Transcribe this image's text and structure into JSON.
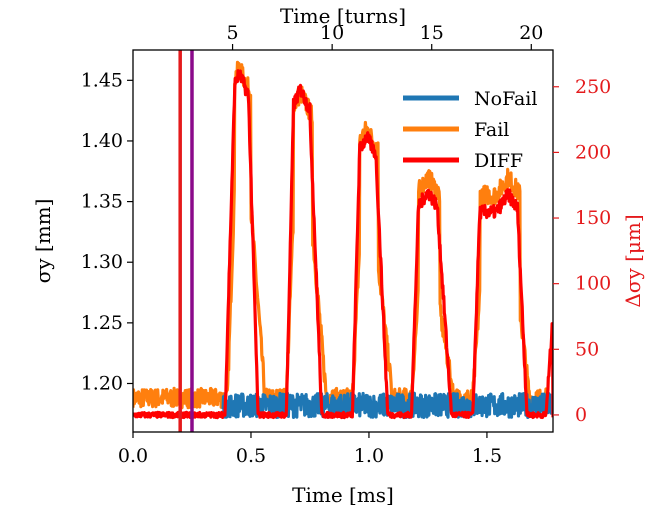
{
  "chart_data": {
    "type": "line",
    "x_axis": {
      "label": "Time [ms]",
      "range": [
        0.0,
        1.78
      ],
      "ticks": [
        0.0,
        0.5,
        1.0,
        1.5
      ],
      "tick_labels": [
        "0.0",
        "0.5",
        "1.0",
        "1.5"
      ]
    },
    "top_axis": {
      "label": "Time [turns]",
      "ticks_ms": [
        0.422,
        0.844,
        1.266,
        1.688
      ],
      "tick_labels": [
        "5",
        "10",
        "15",
        "20"
      ]
    },
    "left_axis": {
      "label": "σy [mm]",
      "range": [
        1.16,
        1.475
      ],
      "ticks": [
        1.2,
        1.25,
        1.3,
        1.35,
        1.4,
        1.45
      ],
      "tick_labels": [
        "1.20",
        "1.25",
        "1.30",
        "1.35",
        "1.40",
        "1.45"
      ]
    },
    "right_axis": {
      "label": "Δσy [μm]",
      "range": [
        -13,
        278
      ],
      "ticks": [
        0,
        50,
        100,
        150,
        200,
        250
      ],
      "tick_labels": [
        "0",
        "50",
        "100",
        "150",
        "200",
        "250"
      ],
      "color": "#e41a1c"
    },
    "vlines": [
      {
        "x": 0.2,
        "color": "#e41a1c"
      },
      {
        "x": 0.25,
        "color": "#8b0a8b"
      }
    ],
    "series": [
      {
        "name": "NoFail",
        "color": "#1f77b4",
        "axis": "left",
        "baseline": 1.182,
        "jitter": 0.01,
        "window": [
          0.38,
          1.78
        ]
      },
      {
        "name": "Fail",
        "color": "#ff7f0e",
        "axis": "left",
        "baseline": 1.188,
        "jitter": 0.008,
        "pulses": [
          {
            "start": 0.4,
            "rise_end": 0.43,
            "peak_x": 0.45,
            "peak": 1.46,
            "fall_start": 0.5,
            "end": 0.56
          },
          {
            "start": 0.65,
            "rise_end": 0.68,
            "peak_x": 0.71,
            "peak": 1.44,
            "fall_start": 0.76,
            "end": 0.82
          },
          {
            "start": 0.93,
            "rise_end": 0.96,
            "peak_x": 0.99,
            "peak": 1.41,
            "fall_start": 1.04,
            "end": 1.1
          },
          {
            "start": 1.18,
            "rise_end": 1.21,
            "peak_x": 1.25,
            "peak": 1.37,
            "fall_start": 1.3,
            "end": 1.36
          },
          {
            "start": 1.44,
            "rise_end": 1.47,
            "peak_x": 1.59,
            "peak": 1.37,
            "fall_start": 1.64,
            "end": 1.68
          },
          {
            "start": 1.75,
            "rise_end": 1.78,
            "peak_x": 1.78,
            "peak": 1.26,
            "fall_start": 1.78,
            "end": 1.78
          }
        ]
      },
      {
        "name": "DIFF",
        "color": "#ff0000",
        "axis": "right",
        "baseline_um": 0,
        "pulses": [
          {
            "start": 0.39,
            "rise_end": 0.43,
            "peak_x": 0.45,
            "peak_um": 260,
            "fall_start": 0.49,
            "end": 0.53
          },
          {
            "start": 0.65,
            "rise_end": 0.68,
            "peak_x": 0.71,
            "peak_um": 248,
            "fall_start": 0.75,
            "end": 0.8
          },
          {
            "start": 0.93,
            "rise_end": 0.96,
            "peak_x": 0.99,
            "peak_um": 212,
            "fall_start": 1.03,
            "end": 1.08
          },
          {
            "start": 1.18,
            "rise_end": 1.21,
            "peak_x": 1.25,
            "peak_um": 170,
            "fall_start": 1.29,
            "end": 1.35
          },
          {
            "start": 1.44,
            "rise_end": 1.47,
            "peak_x": 1.59,
            "peak_um": 168,
            "fall_start": 1.63,
            "end": 1.67
          },
          {
            "start": 1.75,
            "rise_end": 1.78,
            "peak_x": 1.78,
            "peak_um": 80,
            "fall_start": 1.78,
            "end": 1.78
          }
        ]
      }
    ],
    "legend": {
      "placement": "top-right",
      "entries": [
        "NoFail",
        "Fail",
        "DIFF"
      ]
    }
  }
}
